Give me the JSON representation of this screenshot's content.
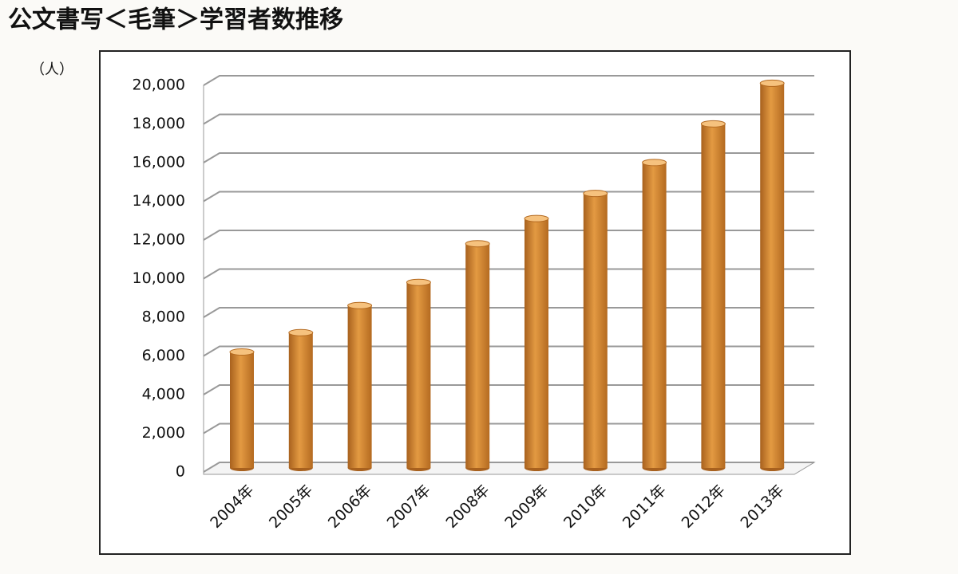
{
  "chart_data": {
    "type": "bar",
    "title": "公文書写＜毛筆＞学習者数推移",
    "y_unit": "（人）",
    "categories": [
      "2004年",
      "2005年",
      "2006年",
      "2007年",
      "2008年",
      "2009年",
      "2010年",
      "2011年",
      "2012年",
      "2013年"
    ],
    "values": [
      6000,
      7000,
      8400,
      9600,
      11600,
      12900,
      14200,
      15800,
      17800,
      19900
    ],
    "color": "#e39a42",
    "ylim": [
      0,
      20000
    ],
    "yticks": [
      0,
      {
        "value": 2000,
        "label": "2,000"
      },
      {
        "value": 4000,
        "label": "4,000"
      },
      {
        "value": 6000,
        "label": "6,000"
      },
      {
        "value": 8000,
        "label": "8,000"
      },
      {
        "value": 10000,
        "label": "10,000"
      },
      {
        "value": 12000,
        "label": "12,000"
      },
      {
        "value": 14000,
        "label": "14,000"
      },
      {
        "value": 16000,
        "label": "16,000"
      },
      {
        "value": 18000,
        "label": "18,000"
      },
      {
        "value": 20000,
        "label": "20,000"
      }
    ],
    "grid": true
  }
}
